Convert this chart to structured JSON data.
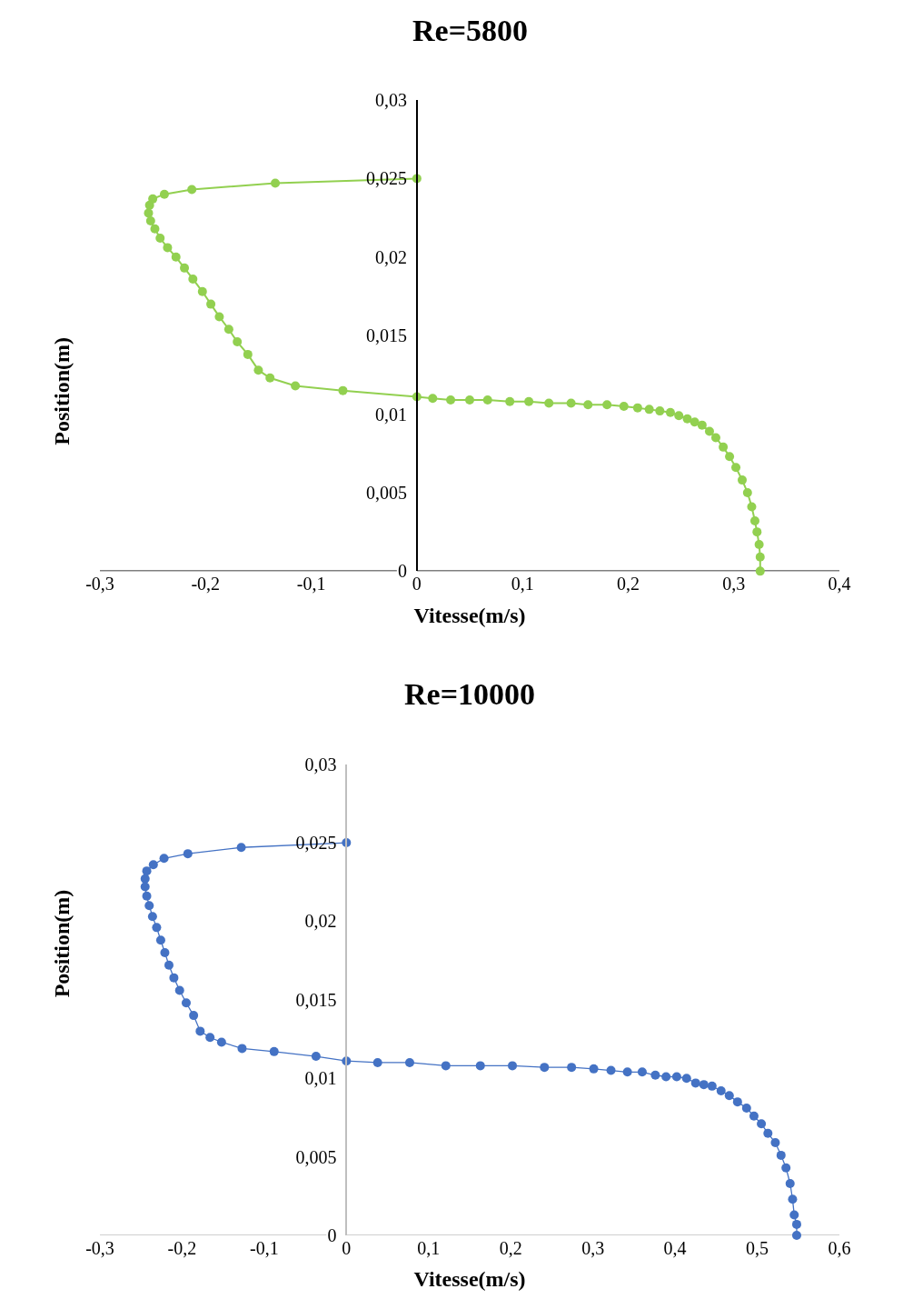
{
  "chart_data": [
    {
      "type": "line",
      "title": "Re=5800",
      "xlabel": "Vitesse(m/s)",
      "ylabel": "Position(m)",
      "marker": "circle",
      "line_style": "solid",
      "xlim": [
        -0.3,
        0.4
      ],
      "ylim": [
        0,
        0.03
      ],
      "xticks": [
        {
          "value": -0.3,
          "label": "-0,3"
        },
        {
          "value": -0.2,
          "label": "-0,2"
        },
        {
          "value": -0.1,
          "label": "-0,1"
        },
        0,
        {
          "value": 0.1,
          "label": "0,1"
        },
        {
          "value": 0.2,
          "label": "0,2"
        },
        {
          "value": 0.3,
          "label": "0,3"
        },
        {
          "value": 0.4,
          "label": "0,4"
        }
      ],
      "yticks": [
        0,
        {
          "value": 0.005,
          "label": "0,005"
        },
        {
          "value": 0.01,
          "label": "0,01"
        },
        {
          "value": 0.015,
          "label": "0,015"
        },
        {
          "value": 0.02,
          "label": "0,02"
        },
        {
          "value": 0.025,
          "label": "0,025"
        },
        {
          "value": 0.03,
          "label": "0,03"
        }
      ],
      "series": [
        {
          "color": "#92d050",
          "x": [
            0,
            -0.134,
            -0.213,
            -0.239,
            -0.25,
            -0.253,
            -0.254,
            -0.252,
            -0.248,
            -0.243,
            -0.236,
            -0.228,
            -0.22,
            -0.212,
            -0.203,
            -0.195,
            -0.187,
            -0.178,
            -0.17,
            -0.16,
            -0.15,
            -0.139,
            -0.115,
            -0.07,
            0,
            0.015,
            0.032,
            0.05,
            0.067,
            0.088,
            0.106,
            0.125,
            0.146,
            0.162,
            0.18,
            0.196,
            0.209,
            0.22,
            0.23,
            0.24,
            0.248,
            0.256,
            0.263,
            0.27,
            0.277,
            0.283,
            0.29,
            0.296,
            0.302,
            0.308,
            0.313,
            0.317,
            0.32,
            0.322,
            0.324,
            0.325,
            0.325
          ],
          "values": [
            0.025,
            0.0247,
            0.0243,
            0.024,
            0.0237,
            0.0233,
            0.0228,
            0.0223,
            0.0218,
            0.0212,
            0.0206,
            0.02,
            0.0193,
            0.0186,
            0.0178,
            0.017,
            0.0162,
            0.0154,
            0.0146,
            0.0138,
            0.0128,
            0.0123,
            0.0118,
            0.0115,
            0.0111,
            0.011,
            0.0109,
            0.0109,
            0.0109,
            0.0108,
            0.0108,
            0.0107,
            0.0107,
            0.0106,
            0.0106,
            0.0105,
            0.0104,
            0.0103,
            0.0102,
            0.0101,
            0.0099,
            0.0097,
            0.0095,
            0.0093,
            0.0089,
            0.0085,
            0.0079,
            0.0073,
            0.0066,
            0.0058,
            0.005,
            0.0041,
            0.0032,
            0.0025,
            0.0017,
            0.0009,
            0
          ]
        }
      ]
    },
    {
      "type": "line",
      "title": "Re=10000",
      "xlabel": "Vitesse(m/s)",
      "ylabel": "Position(m)",
      "marker": "circle",
      "line_style": "solid",
      "xlim": [
        -0.3,
        0.6
      ],
      "ylim": [
        0,
        0.03
      ],
      "xticks": [
        {
          "value": -0.3,
          "label": "-0,3"
        },
        {
          "value": -0.2,
          "label": "-0,2"
        },
        {
          "value": -0.1,
          "label": "-0,1"
        },
        0,
        {
          "value": 0.1,
          "label": "0,1"
        },
        {
          "value": 0.2,
          "label": "0,2"
        },
        {
          "value": 0.3,
          "label": "0,3"
        },
        {
          "value": 0.4,
          "label": "0,4"
        },
        {
          "value": 0.5,
          "label": "0,5"
        },
        {
          "value": 0.6,
          "label": "0,6"
        }
      ],
      "yticks": [
        0,
        {
          "value": 0.005,
          "label": "0,005"
        },
        {
          "value": 0.01,
          "label": "0,01"
        },
        {
          "value": 0.015,
          "label": "0,015"
        },
        {
          "value": 0.02,
          "label": "0,02"
        },
        {
          "value": 0.025,
          "label": "0,025"
        },
        {
          "value": 0.03,
          "label": "0,03"
        }
      ],
      "series": [
        {
          "color": "#4472c4",
          "x": [
            0,
            -0.128,
            -0.193,
            -0.222,
            -0.235,
            -0.243,
            -0.245,
            -0.245,
            -0.243,
            -0.24,
            -0.236,
            -0.231,
            -0.226,
            -0.221,
            -0.216,
            -0.21,
            -0.203,
            -0.195,
            -0.186,
            -0.178,
            -0.166,
            -0.152,
            -0.127,
            -0.088,
            -0.037,
            0,
            0.038,
            0.077,
            0.121,
            0.163,
            0.202,
            0.241,
            0.274,
            0.301,
            0.322,
            0.342,
            0.36,
            0.376,
            0.389,
            0.402,
            0.414,
            0.425,
            0.435,
            0.445,
            0.456,
            0.466,
            0.476,
            0.487,
            0.496,
            0.505,
            0.513,
            0.522,
            0.529,
            0.535,
            0.54,
            0.543,
            0.545,
            0.548,
            0.548
          ],
          "values": [
            0.025,
            0.0247,
            0.0243,
            0.024,
            0.0236,
            0.0232,
            0.0227,
            0.0222,
            0.0216,
            0.021,
            0.0203,
            0.0196,
            0.0188,
            0.018,
            0.0172,
            0.0164,
            0.0156,
            0.0148,
            0.014,
            0.013,
            0.0126,
            0.0123,
            0.0119,
            0.0117,
            0.0114,
            0.0111,
            0.011,
            0.011,
            0.0108,
            0.0108,
            0.0108,
            0.0107,
            0.0107,
            0.0106,
            0.0105,
            0.0104,
            0.0104,
            0.0102,
            0.0101,
            0.0101,
            0.01,
            0.0097,
            0.0096,
            0.0095,
            0.0092,
            0.0089,
            0.0085,
            0.0081,
            0.0076,
            0.0071,
            0.0065,
            0.0059,
            0.0051,
            0.0043,
            0.0033,
            0.0023,
            0.0013,
            0.0007,
            0
          ]
        }
      ]
    }
  ]
}
